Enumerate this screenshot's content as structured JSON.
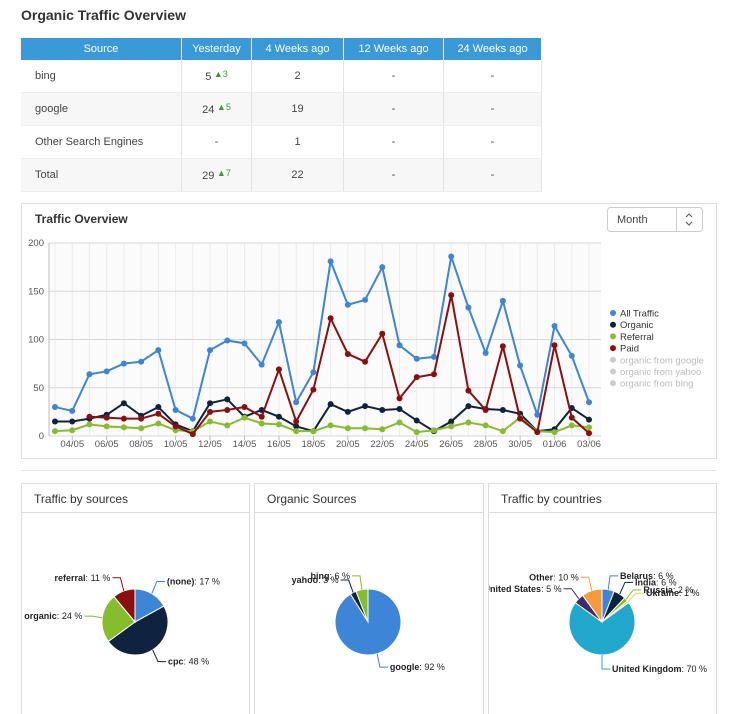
{
  "header": {
    "title": "Organic Traffic Overview"
  },
  "table": {
    "headers": [
      "Source",
      "Yesterday",
      "4 Weeks ago",
      "12 Weeks ago",
      "24 Weeks ago"
    ],
    "rows": [
      {
        "cells": [
          "bing",
          "5",
          "2",
          "-",
          "-"
        ],
        "change": "3"
      },
      {
        "cells": [
          "google",
          "24",
          "19",
          "-",
          "-"
        ],
        "change": "5"
      },
      {
        "cells": [
          "Other Search Engines",
          "-",
          "1",
          "-",
          "-"
        ]
      },
      {
        "cells": [
          "Total",
          "29",
          "22",
          "-",
          "-"
        ],
        "change": "7"
      }
    ]
  },
  "chart_data": [
    {
      "type": "line",
      "title": "Traffic Overview",
      "control": "Month",
      "categories": [
        null,
        "04/05",
        null,
        "06/05",
        null,
        "08/05",
        null,
        "10/05",
        null,
        "12/05",
        null,
        "14/05",
        null,
        "16/05",
        null,
        "18/05",
        null,
        "20/05",
        null,
        "22/05",
        null,
        "24/05",
        null,
        "26/05",
        null,
        "28/05",
        null,
        "30/05",
        null,
        "01/06",
        null,
        "03/06"
      ],
      "series": [
        {
          "name": "All Traffic",
          "color": "#3d85d6",
          "values": [
            30,
            26,
            64,
            67,
            75,
            77,
            89,
            27,
            18,
            89,
            99,
            96,
            74,
            118,
            35,
            66,
            181,
            136,
            141,
            175,
            94,
            80,
            82,
            186,
            133,
            86,
            140,
            73,
            22,
            114,
            83,
            35
          ]
        },
        {
          "name": "Organic",
          "color": "#0f2340",
          "values": [
            15,
            15,
            18,
            22,
            34,
            21,
            30,
            12,
            5,
            34,
            38,
            20,
            27,
            20,
            10,
            5,
            33,
            25,
            31,
            27,
            28,
            16,
            5,
            15,
            31,
            28,
            27,
            23,
            5,
            7,
            29,
            17
          ]
        },
        {
          "name": "Referral",
          "color": "#86bd2c",
          "values": [
            5,
            6,
            12,
            10,
            9,
            8,
            13,
            6,
            5,
            15,
            11,
            19,
            13,
            12,
            5,
            5,
            11,
            8,
            8,
            7,
            14,
            4,
            6,
            10,
            14,
            11,
            5,
            19,
            5,
            4,
            11,
            9
          ]
        },
        {
          "name": "Paid",
          "color": "#8b0f10",
          "values": [
            null,
            null,
            20,
            19,
            18,
            18,
            23,
            10,
            2,
            25,
            27,
            30,
            20,
            69,
            15,
            48,
            122,
            85,
            77,
            106,
            39,
            61,
            64,
            146,
            47,
            27,
            93,
            18,
            4,
            94,
            19,
            3
          ]
        }
      ],
      "hidden_series": [
        {
          "name": "organic from google",
          "color": "#cccccc"
        },
        {
          "name": "organic from yahoo",
          "color": "#cccccc"
        },
        {
          "name": "organic from bing",
          "color": "#cccccc"
        }
      ],
      "ylim": [
        0,
        200
      ],
      "yticks": [
        0,
        50,
        100,
        150,
        200
      ],
      "grid": true,
      "legend": "right"
    },
    {
      "type": "pie",
      "title": "Traffic by sources",
      "categories": [
        "(none)",
        "cpc",
        "organic",
        "referral"
      ],
      "values": [
        17,
        48,
        24,
        11
      ],
      "value_labels": [
        "17 %",
        "48 %",
        "24 %",
        "11 %"
      ],
      "colors": [
        "#3d85d6",
        "#0f2340",
        "#86bd2c",
        "#8b0f10"
      ]
    },
    {
      "type": "pie",
      "title": "Organic Sources",
      "categories": [
        "google",
        "yahoo",
        "bing"
      ],
      "values": [
        92,
        3,
        6
      ],
      "value_labels": [
        "92 %",
        "3 %",
        "6 %"
      ],
      "colors": [
        "#3d85d6",
        "#0f2340",
        "#86bd2c"
      ]
    },
    {
      "type": "pie",
      "title": "Traffic by countries",
      "categories": [
        "Belarus",
        "India",
        "Russia",
        "Ukraine",
        "United Kingdom",
        "United States",
        "Other"
      ],
      "values": [
        6,
        6,
        2,
        1,
        70,
        5,
        10
      ],
      "value_labels": [
        "6 %",
        "6 %",
        "2 %",
        "1 %",
        "70 %",
        "5 %",
        "10 %"
      ],
      "colors": [
        "#3d85d6",
        "#0f2340",
        "#86bd2c",
        "#e8d44d",
        "#21a8cc",
        "#3d2c6e",
        "#f79a3a"
      ]
    }
  ]
}
